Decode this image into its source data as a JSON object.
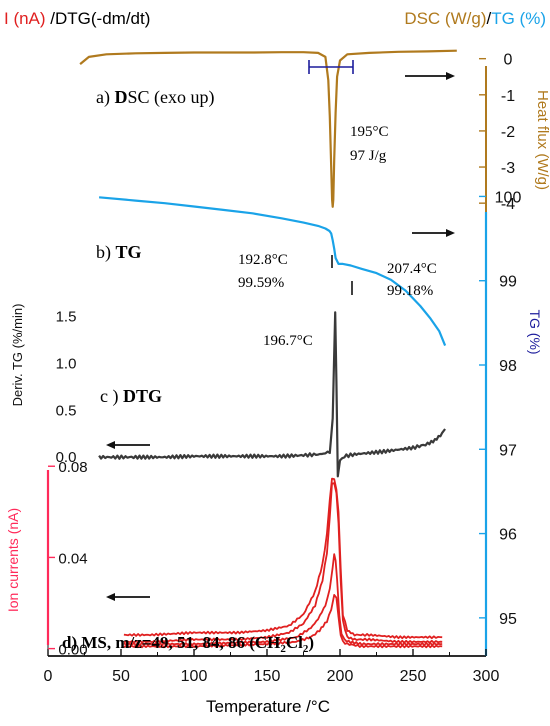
{
  "header": {
    "left_red": "I (nA)",
    "left_black": " /DTG(-dm/dt)",
    "right_brown": "DSC (W/g)",
    "right_slash": "/",
    "right_blue": "TG (%)"
  },
  "colors": {
    "dsc": "#b07a1e",
    "tg": "#1aa3e8",
    "dtg": "#3a3a3a",
    "ms": "#e02020",
    "ms_axis": "#ff2a5a",
    "tg_label": "#1c1c9c",
    "axis": "#111111"
  },
  "axes": {
    "x": {
      "label": "Temperature /°C",
      "range": [
        0,
        300
      ],
      "ticks": [
        "0",
        "50",
        "100",
        "150",
        "200",
        "250",
        "300"
      ]
    },
    "dsc": {
      "label": "Heat flux (W/g)",
      "range": [
        -4.3,
        0.6
      ],
      "ticks": [
        "0",
        "-1",
        "-2",
        "-3",
        "-4"
      ]
    },
    "tg": {
      "label": "TG (%)",
      "range": [
        94.5,
        100.1
      ],
      "ticks": [
        "100",
        "99",
        "98",
        "97",
        "96",
        "95"
      ]
    },
    "dtg": {
      "label": "Deriv. TG  (%/min)",
      "range": [
        -0.2,
        1.6
      ],
      "ticks": [
        "1.5",
        "1.0",
        "0.5",
        "0.0"
      ]
    },
    "ms": {
      "label": "Ion currents (nA)",
      "range": [
        -0.005,
        0.088
      ],
      "ticks": [
        "0.08",
        "0.04",
        "0.00"
      ]
    }
  },
  "panels": {
    "a_prefix": "a) ",
    "a_bold": "D",
    "a_rest": "SC (exo up)",
    "b_prefix": "b) ",
    "b_bold": "TG",
    "c_prefix": "c ) ",
    "c_bold": "DTG",
    "d_bold": "d) MS,  m/z=49, 51, 84, 86 (CH",
    "d_sub1": "2",
    "d_mid": "Cl",
    "d_sub2": "2",
    "d_end": ")"
  },
  "annotations": {
    "dsc_peak_temp": "195°C",
    "dsc_peak_enthalpy": "97 J/g",
    "tg_onset_temp": "192.8°C",
    "tg_onset_mass": "99.59%",
    "tg_end_temp": "207.4°C",
    "tg_end_mass": "99.18%",
    "dtg_peak_temp": "196.7°C"
  },
  "chart_data": {
    "type": "line",
    "x_unit": "°C",
    "series": [
      {
        "name": "DSC",
        "axis": "dsc",
        "x": [
          22,
          28,
          40,
          60,
          80,
          100,
          120,
          140,
          160,
          175,
          185,
          190,
          192,
          193,
          194,
          194.6,
          195,
          195.4,
          196,
          197,
          198,
          200,
          205,
          220,
          240,
          260,
          280
        ],
        "y": [
          -0.15,
          0.05,
          0.12,
          0.15,
          0.16,
          0.17,
          0.17,
          0.17,
          0.18,
          0.18,
          0.16,
          0.05,
          -0.6,
          -1.6,
          -3.0,
          -3.9,
          -4.1,
          -3.9,
          -2.8,
          -1.5,
          -0.5,
          -0.05,
          0.12,
          0.16,
          0.19,
          0.2,
          0.22
        ]
      },
      {
        "name": "TG",
        "axis": "tg",
        "x": [
          35,
          60,
          80,
          100,
          120,
          140,
          160,
          175,
          185,
          190,
          192.8,
          194,
          195,
          196,
          197,
          199,
          202,
          207.4,
          215,
          225,
          235,
          245,
          255,
          262,
          268,
          272
        ],
        "y": [
          99.99,
          99.95,
          99.92,
          99.88,
          99.84,
          99.8,
          99.74,
          99.69,
          99.65,
          99.62,
          99.59,
          99.56,
          99.48,
          99.38,
          99.27,
          99.2,
          99.2,
          99.18,
          99.14,
          99.09,
          99.01,
          98.88,
          98.7,
          98.55,
          98.4,
          98.23
        ]
      },
      {
        "name": "DTG",
        "axis": "dtg",
        "x": [
          35,
          60,
          80,
          100,
          120,
          140,
          160,
          175,
          185,
          190,
          193,
          195,
          196,
          196.7,
          197.5,
          198.5,
          200,
          203,
          210,
          230,
          250,
          260,
          265,
          270,
          272
        ],
        "y": [
          -0.01,
          -0.01,
          -0.01,
          0.0,
          0.0,
          0.0,
          0.0,
          0.01,
          0.02,
          0.03,
          0.05,
          0.4,
          1.1,
          1.52,
          0.8,
          -0.2,
          -0.05,
          0.0,
          0.02,
          0.05,
          0.09,
          0.13,
          0.17,
          0.24,
          0.29
        ]
      },
      {
        "name": "m/z 49",
        "axis": "ms",
        "x": [
          52,
          70,
          100,
          130,
          150,
          165,
          175,
          183,
          188,
          191,
          193,
          194.5,
          196,
          197.5,
          199,
          200.5,
          202,
          205,
          210,
          220,
          240,
          260,
          270
        ],
        "y": [
          0.006,
          0.006,
          0.007,
          0.007,
          0.008,
          0.01,
          0.015,
          0.025,
          0.037,
          0.05,
          0.065,
          0.075,
          0.074,
          0.07,
          0.06,
          0.035,
          0.015,
          0.008,
          0.006,
          0.006,
          0.005,
          0.005,
          0.005
        ]
      },
      {
        "name": "m/z 51",
        "axis": "ms",
        "x": [
          52,
          70,
          100,
          130,
          150,
          165,
          175,
          183,
          188,
          191,
          193,
          194.5,
          196,
          197.5,
          199,
          200.5,
          202,
          205,
          210,
          220,
          240,
          260,
          270
        ],
        "y": [
          0.003,
          0.003,
          0.004,
          0.004,
          0.005,
          0.007,
          0.011,
          0.019,
          0.03,
          0.042,
          0.058,
          0.072,
          0.073,
          0.068,
          0.055,
          0.03,
          0.012,
          0.005,
          0.004,
          0.004,
          0.003,
          0.003,
          0.003
        ]
      },
      {
        "name": "m/z 84",
        "axis": "ms",
        "x": [
          52,
          100,
          150,
          170,
          180,
          185,
          190,
          193,
          195,
          196,
          197,
          198,
          199.5,
          201,
          203,
          206,
          215,
          240,
          270
        ],
        "y": [
          0.002,
          0.002,
          0.003,
          0.005,
          0.009,
          0.013,
          0.019,
          0.026,
          0.036,
          0.041,
          0.039,
          0.03,
          0.015,
          0.006,
          0.004,
          0.003,
          0.002,
          0.002,
          0.002
        ]
      },
      {
        "name": "m/z 86",
        "axis": "ms",
        "x": [
          52,
          100,
          150,
          170,
          180,
          186,
          191,
          194,
          196,
          197.5,
          199,
          200.5,
          202,
          205,
          215,
          240,
          270
        ],
        "y": [
          0.001,
          0.001,
          0.002,
          0.003,
          0.005,
          0.008,
          0.012,
          0.017,
          0.024,
          0.022,
          0.014,
          0.006,
          0.003,
          0.002,
          0.001,
          0.001,
          0.001
        ]
      }
    ]
  }
}
